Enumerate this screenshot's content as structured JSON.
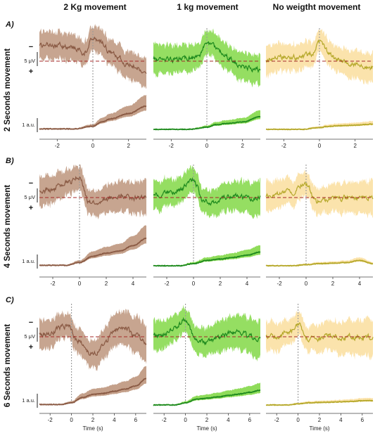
{
  "figure": {
    "columns": [
      {
        "label": "2 Kg movement"
      },
      {
        "label": "1 kg movement"
      },
      {
        "label": "No weigtht movement"
      }
    ],
    "rows": [
      {
        "letter": "A)",
        "label": "2 Seconds movement"
      },
      {
        "letter": "B)",
        "label": "4 Seconds movement"
      },
      {
        "letter": "C)",
        "label": "6 Seconds movement"
      }
    ],
    "x_axis_label": "Time (s)",
    "eeg_scale_label": "5 μV",
    "emg_scale_label": "1 a.u.",
    "sign_negative": "−",
    "sign_positive": "+",
    "colors": {
      "col0_line": "#8a5a44",
      "col0_band": "#c4a08a",
      "col1_line": "#1e8a1e",
      "col1_band": "#8fdc5a",
      "col2_line": "#b5a82a",
      "col2_band": "#fbe2a8",
      "baseline": "#a52a2a",
      "event": "#999999"
    }
  },
  "chart_data": [
    {
      "type": "line",
      "row": 0,
      "col": 0,
      "xlabel": "",
      "xlim": [
        -3,
        3
      ],
      "xticks": [
        -2,
        0,
        2
      ],
      "eeg": {
        "x": [
          -3,
          -2,
          -1,
          -0.5,
          0,
          0.5,
          1,
          2,
          3
        ],
        "y": [
          -5,
          -5.5,
          -4.5,
          -3,
          -8,
          -6,
          -3,
          1,
          3
        ]
      },
      "emg": {
        "x": [
          -3,
          -1,
          0,
          0.5,
          1,
          2,
          3
        ],
        "y": [
          0.02,
          0.02,
          0.15,
          0.35,
          0.5,
          0.75,
          1.1
        ]
      }
    },
    {
      "type": "line",
      "row": 0,
      "col": 1,
      "xlabel": "",
      "xlim": [
        -3,
        3
      ],
      "xticks": [
        -2,
        0,
        2
      ],
      "eeg": {
        "x": [
          -3,
          -2,
          -1,
          -0.5,
          0,
          0.5,
          1,
          2,
          3
        ],
        "y": [
          -0.5,
          -0.7,
          -1,
          -1.5,
          -6,
          -5,
          -1.5,
          2,
          3
        ]
      },
      "emg": {
        "x": [
          -3,
          -1,
          0,
          0.5,
          1,
          2,
          3
        ],
        "y": [
          0,
          0,
          0.1,
          0.22,
          0.27,
          0.35,
          0.6
        ]
      }
    },
    {
      "type": "line",
      "row": 0,
      "col": 2,
      "xlabel": "",
      "xlim": [
        -3,
        3
      ],
      "xticks": [
        -2,
        0,
        2
      ],
      "eeg": {
        "x": [
          -3,
          -2,
          -1,
          -0.5,
          0,
          0.5,
          1,
          2,
          3
        ],
        "y": [
          0,
          -1.5,
          -1,
          -2.5,
          -6,
          -3,
          -0.5,
          1,
          2.5
        ]
      },
      "emg": {
        "x": [
          -3,
          -1,
          0,
          0.5,
          1,
          2,
          3
        ],
        "y": [
          0,
          0,
          0.08,
          0.14,
          0.17,
          0.2,
          0.25
        ]
      }
    },
    {
      "type": "line",
      "row": 1,
      "col": 0,
      "xlabel": "",
      "xlim": [
        -3,
        5
      ],
      "xticks": [
        -2,
        0,
        2,
        4
      ],
      "eeg": {
        "x": [
          -3,
          -2,
          -1,
          0,
          0.7,
          1.5,
          2,
          3,
          4,
          5
        ],
        "y": [
          -2,
          -3,
          -5,
          -7,
          1.5,
          2,
          0.5,
          -0.5,
          0,
          0
        ]
      },
      "emg": {
        "x": [
          -3,
          -1,
          0,
          1,
          2,
          3,
          4,
          5
        ],
        "y": [
          0.02,
          0.02,
          0.15,
          0.45,
          0.6,
          0.7,
          0.95,
          1.3
        ]
      }
    },
    {
      "type": "line",
      "row": 1,
      "col": 1,
      "xlabel": "",
      "xlim": [
        -3,
        5
      ],
      "xticks": [
        -2,
        0,
        2,
        4
      ],
      "eeg": {
        "x": [
          -3,
          -2,
          -1,
          0,
          0.7,
          1.5,
          2,
          3,
          4,
          5
        ],
        "y": [
          -0.5,
          -1.5,
          -2.5,
          -6,
          1,
          1.5,
          0.5,
          -0.5,
          0,
          0
        ]
      },
      "emg": {
        "x": [
          -3,
          -1,
          0,
          1,
          2,
          3,
          4,
          5
        ],
        "y": [
          0,
          0,
          0.1,
          0.25,
          0.32,
          0.4,
          0.5,
          0.65
        ]
      }
    },
    {
      "type": "line",
      "row": 1,
      "col": 2,
      "xlabel": "",
      "xlim": [
        -3,
        5
      ],
      "xticks": [
        -2,
        0,
        2,
        4
      ],
      "eeg": {
        "x": [
          -3,
          -2,
          -1,
          0,
          0.7,
          1.5,
          2,
          3,
          4,
          5
        ],
        "y": [
          0,
          -1,
          -2,
          -5,
          1.5,
          1,
          0.5,
          0,
          0,
          0
        ]
      },
      "emg": {
        "x": [
          -3,
          -1,
          0,
          1,
          2,
          3,
          4,
          5
        ],
        "y": [
          0,
          0,
          0.05,
          0.1,
          0.12,
          0.15,
          0.25,
          0.1
        ]
      }
    },
    {
      "type": "line",
      "row": 2,
      "col": 0,
      "xlabel": "Time (s)",
      "xlim": [
        -3,
        7
      ],
      "xticks": [
        -2,
        0,
        2,
        4,
        6
      ],
      "eeg": {
        "x": [
          -3,
          -2,
          -1,
          -0.3,
          0.5,
          1.5,
          2,
          3,
          4,
          5,
          6,
          7
        ],
        "y": [
          -1,
          -1,
          -3,
          -4,
          1,
          5,
          6,
          3,
          -2,
          -3,
          0,
          2
        ]
      },
      "emg": {
        "x": [
          -3,
          -1,
          0,
          1,
          2,
          3,
          4,
          5,
          6,
          7
        ],
        "y": [
          0.02,
          0.02,
          0.1,
          0.35,
          0.5,
          0.55,
          0.65,
          0.75,
          0.9,
          1.25
        ]
      }
    },
    {
      "type": "line",
      "row": 2,
      "col": 1,
      "xlabel": "Time (s)",
      "xlim": [
        -3,
        7
      ],
      "xticks": [
        -2,
        0,
        2,
        4,
        6
      ],
      "eeg": {
        "x": [
          -3,
          -2,
          -1,
          0,
          1,
          2,
          3,
          4,
          5,
          6,
          7
        ],
        "y": [
          -0.5,
          -1,
          -3,
          -6,
          1,
          2,
          0.5,
          -1,
          -2,
          0,
          1
        ]
      },
      "emg": {
        "x": [
          -3,
          -1,
          0,
          1,
          2,
          3,
          4,
          5,
          6,
          7
        ],
        "y": [
          0,
          0,
          0.1,
          0.27,
          0.32,
          0.38,
          0.45,
          0.52,
          0.6,
          0.7
        ]
      }
    },
    {
      "type": "line",
      "row": 2,
      "col": 2,
      "xlabel": "Time (s)",
      "xlim": [
        -3,
        7
      ],
      "xticks": [
        -2,
        0,
        2,
        4,
        6
      ],
      "eeg": {
        "x": [
          -3,
          -2,
          -1,
          0,
          1,
          2,
          3,
          4,
          5,
          6,
          7
        ],
        "y": [
          0,
          0,
          -1,
          -4,
          0.5,
          0.5,
          0,
          0,
          0,
          0,
          0
        ]
      },
      "emg": {
        "x": [
          -3,
          -1,
          0,
          1,
          2,
          3,
          4,
          5,
          6,
          7
        ],
        "y": [
          0,
          0,
          0.05,
          0.1,
          0.12,
          0.13,
          0.15,
          0.17,
          0.2,
          0.2
        ]
      }
    }
  ]
}
